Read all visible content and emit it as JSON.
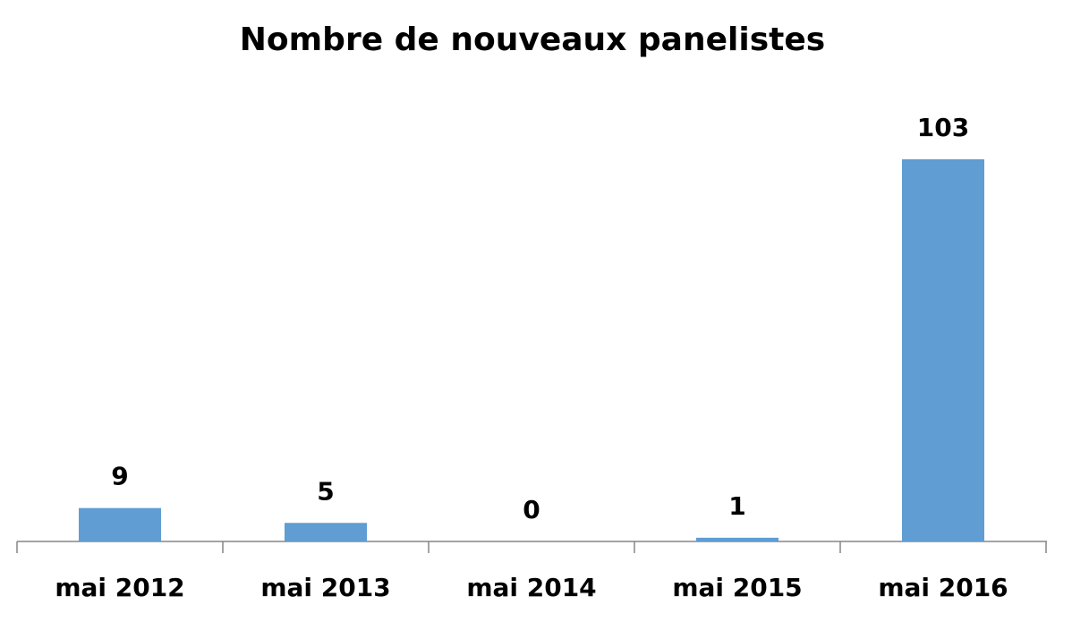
{
  "chart_data": {
    "type": "bar",
    "title": "Nombre de nouveaux panelistes",
    "categories": [
      "mai 2012",
      "mai 2013",
      "mai 2014",
      "mai 2015",
      "mai 2016"
    ],
    "values": [
      9,
      5,
      0,
      1,
      103
    ],
    "color": "#5f9dd3"
  }
}
